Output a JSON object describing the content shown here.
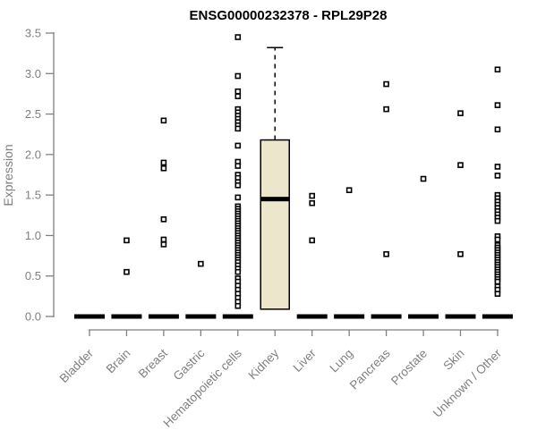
{
  "chart_data": {
    "type": "boxplot",
    "title": "ENSG00000232378 - RPL29P28",
    "ylabel": "Expression",
    "xlabel": "",
    "ylim": [
      0,
      3.5
    ],
    "ytick_labels": [
      "0.0",
      "0.5",
      "1.0",
      "1.5",
      "2.0",
      "2.5",
      "3.0",
      "3.5"
    ],
    "grid": false,
    "legend": "none",
    "categories": [
      "Bladder",
      "Brain",
      "Breast",
      "Gastric",
      "Hematopoietic cells",
      "Kidney",
      "Liver",
      "Lung",
      "Pancreas",
      "Prostate",
      "Skin",
      "Unknown / Other"
    ],
    "boxes": [
      {
        "category": "Bladder",
        "q1": 0,
        "median": 0,
        "q3": 0,
        "whisker_low": 0,
        "whisker_high": 0,
        "outliers": []
      },
      {
        "category": "Brain",
        "q1": 0,
        "median": 0,
        "q3": 0,
        "whisker_low": 0,
        "whisker_high": 0,
        "outliers": [
          0.94,
          0.55
        ]
      },
      {
        "category": "Breast",
        "q1": 0,
        "median": 0,
        "q3": 0,
        "whisker_low": 0,
        "whisker_high": 0,
        "outliers": [
          2.42,
          1.9,
          1.83,
          1.2,
          0.95,
          0.89
        ]
      },
      {
        "category": "Gastric",
        "q1": 0,
        "median": 0,
        "q3": 0,
        "whisker_low": 0,
        "whisker_high": 0,
        "outliers": [
          0.65
        ]
      },
      {
        "category": "Hematopoietic cells",
        "q1": 0,
        "median": 0,
        "q3": 0,
        "whisker_low": 0,
        "whisker_high": 0,
        "outliers": [
          3.45,
          2.97,
          2.78,
          2.72,
          2.56,
          2.52,
          2.48,
          2.44,
          2.4,
          2.36,
          2.32,
          2.11,
          1.91,
          1.86,
          1.75,
          1.71,
          1.66,
          1.62,
          1.47,
          1.36,
          1.33,
          1.3,
          1.27,
          1.24,
          1.21,
          1.18,
          1.15,
          1.12,
          1.09,
          1.06,
          1.03,
          1.0,
          0.97,
          0.94,
          0.91,
          0.88,
          0.85,
          0.82,
          0.79,
          0.76,
          0.73,
          0.7,
          0.67,
          0.63,
          0.59,
          0.55,
          0.47,
          0.43,
          0.38,
          0.33,
          0.28,
          0.23,
          0.18,
          0.13
        ]
      },
      {
        "category": "Kidney",
        "q1": 0.09,
        "median": 1.45,
        "q3": 2.18,
        "whisker_low": 0.09,
        "whisker_high": 3.32,
        "outliers": []
      },
      {
        "category": "Liver",
        "q1": 0,
        "median": 0,
        "q3": 0,
        "whisker_low": 0,
        "whisker_high": 0,
        "outliers": [
          1.49,
          1.4,
          0.94
        ]
      },
      {
        "category": "Lung",
        "q1": 0,
        "median": 0,
        "q3": 0,
        "whisker_low": 0,
        "whisker_high": 0,
        "outliers": [
          1.56
        ]
      },
      {
        "category": "Pancreas",
        "q1": 0,
        "median": 0,
        "q3": 0,
        "whisker_low": 0,
        "whisker_high": 0,
        "outliers": [
          2.87,
          2.56,
          0.77
        ]
      },
      {
        "category": "Prostate",
        "q1": 0,
        "median": 0,
        "q3": 0,
        "whisker_low": 0,
        "whisker_high": 0,
        "outliers": [
          1.7
        ]
      },
      {
        "category": "Skin",
        "q1": 0,
        "median": 0,
        "q3": 0,
        "whisker_low": 0,
        "whisker_high": 0,
        "outliers": [
          2.51,
          1.87,
          0.77
        ]
      },
      {
        "category": "Unknown / Other",
        "q1": 0,
        "median": 0,
        "q3": 0,
        "whisker_low": 0,
        "whisker_high": 0,
        "outliers": [
          3.05,
          2.61,
          2.31,
          1.85,
          1.74,
          1.5,
          1.46,
          1.42,
          1.38,
          1.34,
          1.3,
          1.26,
          1.22,
          1.18,
          0.99,
          0.95,
          0.88,
          0.85,
          0.82,
          0.79,
          0.76,
          0.73,
          0.7,
          0.67,
          0.64,
          0.61,
          0.58,
          0.55,
          0.52,
          0.49,
          0.46,
          0.43,
          0.37,
          0.33,
          0.28
        ]
      }
    ],
    "colors": {
      "background": "#ffffff",
      "box_fill": "#ebe6cc",
      "box_border": "#000000",
      "median": "#000000",
      "outlier": "#000000",
      "axis": "#808080",
      "tick_label": "#7f7f7f",
      "title": "#000000"
    }
  }
}
